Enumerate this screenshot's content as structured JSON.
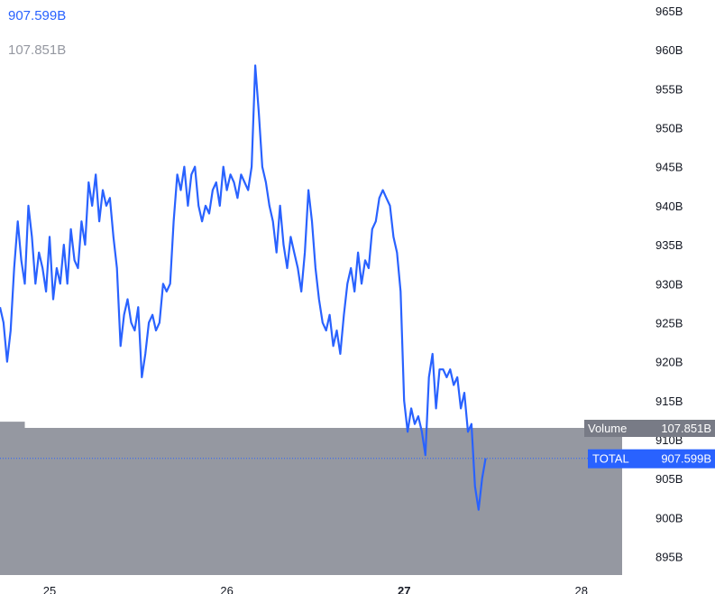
{
  "legend": {
    "total_value": "907.599B",
    "volume_value": "107.851B"
  },
  "colors": {
    "total_line": "#2962ff",
    "volume_area": "#9598a1",
    "tag_blue": "#2962ff",
    "tag_gray": "#787b86"
  },
  "price_tags": {
    "volume_label": "Volume",
    "volume_value": "107.851B",
    "total_label": "TOTAL",
    "total_value": "907.599B"
  },
  "chart_data": {
    "type": "line",
    "ylim": [
      893,
      966
    ],
    "y_ticks": [
      "965B",
      "960B",
      "955B",
      "950B",
      "945B",
      "940B",
      "935B",
      "930B",
      "925B",
      "920B",
      "915B",
      "910B",
      "905B",
      "900B",
      "895B"
    ],
    "x_ticks": [
      {
        "label": "25",
        "bold": false,
        "x": 25
      },
      {
        "label": "26",
        "bold": false,
        "x": 26
      },
      {
        "label": "27",
        "bold": true,
        "x": 27
      },
      {
        "label": "28",
        "bold": false,
        "x": 28
      }
    ],
    "xlim": [
      24.72,
      28.23
    ],
    "current_total": 907.599,
    "series": [
      {
        "name": "TOTAL",
        "points": [
          [
            24.72,
            927
          ],
          [
            24.74,
            925
          ],
          [
            24.76,
            920
          ],
          [
            24.78,
            924
          ],
          [
            24.8,
            932
          ],
          [
            24.82,
            938
          ],
          [
            24.84,
            933
          ],
          [
            24.86,
            930
          ],
          [
            24.88,
            940
          ],
          [
            24.9,
            936
          ],
          [
            24.92,
            930
          ],
          [
            24.94,
            934
          ],
          [
            24.96,
            932
          ],
          [
            24.98,
            929
          ],
          [
            25.0,
            936
          ],
          [
            25.02,
            928
          ],
          [
            25.04,
            932
          ],
          [
            25.06,
            930
          ],
          [
            25.08,
            935
          ],
          [
            25.1,
            930
          ],
          [
            25.12,
            937
          ],
          [
            25.14,
            933
          ],
          [
            25.16,
            932
          ],
          [
            25.18,
            938
          ],
          [
            25.2,
            935
          ],
          [
            25.22,
            943
          ],
          [
            25.24,
            940
          ],
          [
            25.26,
            944
          ],
          [
            25.28,
            938
          ],
          [
            25.3,
            942
          ],
          [
            25.32,
            940
          ],
          [
            25.34,
            941
          ],
          [
            25.36,
            936
          ],
          [
            25.38,
            932
          ],
          [
            25.4,
            922
          ],
          [
            25.42,
            926
          ],
          [
            25.44,
            928
          ],
          [
            25.46,
            925
          ],
          [
            25.48,
            924
          ],
          [
            25.5,
            927
          ],
          [
            25.52,
            918
          ],
          [
            25.54,
            921
          ],
          [
            25.56,
            925
          ],
          [
            25.58,
            926
          ],
          [
            25.6,
            924
          ],
          [
            25.62,
            925
          ],
          [
            25.64,
            930
          ],
          [
            25.66,
            929
          ],
          [
            25.68,
            930
          ],
          [
            25.7,
            938
          ],
          [
            25.72,
            944
          ],
          [
            25.74,
            942
          ],
          [
            25.76,
            945
          ],
          [
            25.78,
            940
          ],
          [
            25.8,
            944
          ],
          [
            25.82,
            945
          ],
          [
            25.84,
            940
          ],
          [
            25.86,
            938
          ],
          [
            25.88,
            940
          ],
          [
            25.9,
            939
          ],
          [
            25.92,
            942
          ],
          [
            25.94,
            943
          ],
          [
            25.96,
            940
          ],
          [
            25.98,
            945
          ],
          [
            26.0,
            942
          ],
          [
            26.02,
            944
          ],
          [
            26.04,
            943
          ],
          [
            26.06,
            941
          ],
          [
            26.08,
            944
          ],
          [
            26.1,
            943
          ],
          [
            26.12,
            942
          ],
          [
            26.14,
            945
          ],
          [
            26.16,
            958
          ],
          [
            26.18,
            952
          ],
          [
            26.2,
            945
          ],
          [
            26.22,
            943
          ],
          [
            26.24,
            940
          ],
          [
            26.26,
            938
          ],
          [
            26.28,
            934
          ],
          [
            26.3,
            940
          ],
          [
            26.32,
            935
          ],
          [
            26.34,
            932
          ],
          [
            26.36,
            936
          ],
          [
            26.38,
            934
          ],
          [
            26.4,
            932
          ],
          [
            26.42,
            929
          ],
          [
            26.44,
            934
          ],
          [
            26.46,
            942
          ],
          [
            26.48,
            938
          ],
          [
            26.5,
            932
          ],
          [
            26.52,
            928
          ],
          [
            26.54,
            925
          ],
          [
            26.56,
            924
          ],
          [
            26.58,
            926
          ],
          [
            26.6,
            922
          ],
          [
            26.62,
            924
          ],
          [
            26.64,
            921
          ],
          [
            26.66,
            926
          ],
          [
            26.68,
            930
          ],
          [
            26.7,
            932
          ],
          [
            26.72,
            929
          ],
          [
            26.74,
            934
          ],
          [
            26.76,
            930
          ],
          [
            26.78,
            933
          ],
          [
            26.8,
            932
          ],
          [
            26.82,
            937
          ],
          [
            26.84,
            938
          ],
          [
            26.86,
            941
          ],
          [
            26.88,
            942
          ],
          [
            26.9,
            941
          ],
          [
            26.92,
            940
          ],
          [
            26.94,
            936
          ],
          [
            26.96,
            934
          ],
          [
            26.98,
            929
          ],
          [
            27.0,
            915
          ],
          [
            27.02,
            911
          ],
          [
            27.04,
            914
          ],
          [
            27.06,
            912
          ],
          [
            27.08,
            913
          ],
          [
            27.1,
            911
          ],
          [
            27.12,
            908
          ],
          [
            27.14,
            918
          ],
          [
            27.16,
            921
          ],
          [
            27.18,
            914
          ],
          [
            27.2,
            919
          ],
          [
            27.22,
            919
          ],
          [
            27.24,
            918
          ],
          [
            27.26,
            919
          ],
          [
            27.28,
            917
          ],
          [
            27.3,
            918
          ],
          [
            27.32,
            914
          ],
          [
            27.34,
            916
          ],
          [
            27.36,
            911
          ],
          [
            27.38,
            912
          ],
          [
            27.4,
            904
          ],
          [
            27.42,
            901
          ],
          [
            27.44,
            905
          ],
          [
            27.46,
            907.599
          ]
        ]
      }
    ],
    "volume_area": {
      "name": "Volume",
      "value": 107.851,
      "area_top": 911.5,
      "area_top_left": 912.3,
      "area_top_left_until": 24.86
    }
  }
}
